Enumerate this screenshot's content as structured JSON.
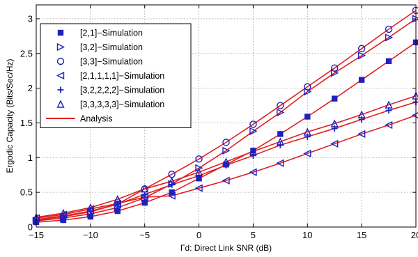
{
  "chart_data": {
    "type": "line",
    "xlabel": "Γd: Direct Link SNR (dB)",
    "ylabel": "Ergodic Capacity (Bits/Sec/Hz)",
    "xlim": [
      -15,
      20
    ],
    "ylim": [
      0,
      3.2
    ],
    "xticks": [
      -15,
      -10,
      -5,
      0,
      5,
      10,
      15,
      20
    ],
    "xtick_labels": [
      "−15",
      "−10",
      "−5",
      "0",
      "5",
      "10",
      "15",
      "20"
    ],
    "yticks": [
      0,
      0.5,
      1,
      1.5,
      2,
      2.5,
      3
    ],
    "ytick_labels": [
      "0",
      "0.5",
      "1",
      "1.5",
      "2",
      "2.5",
      "3"
    ],
    "grid": true,
    "legend_position": "top-left",
    "line_color": "#e02020",
    "marker_color": "#2020c0",
    "x": [
      -15,
      -12.5,
      -10,
      -7.5,
      -5,
      -2.5,
      0,
      2.5,
      5,
      7.5,
      10,
      12.5,
      15,
      17.5,
      20
    ],
    "series": [
      {
        "name": "[2,1]−Simulation",
        "marker": "square",
        "values": [
          0.07,
          0.1,
          0.15,
          0.23,
          0.35,
          0.5,
          0.7,
          0.9,
          1.1,
          1.34,
          1.59,
          1.85,
          2.12,
          2.39,
          2.66
        ]
      },
      {
        "name": "[3,2]−Simulation",
        "marker": "triangle-right",
        "values": [
          0.09,
          0.13,
          0.19,
          0.28,
          0.42,
          0.62,
          0.85,
          1.1,
          1.38,
          1.65,
          1.95,
          2.22,
          2.47,
          2.73,
          3.0
        ]
      },
      {
        "name": "[3,3]−Simulation",
        "marker": "circle",
        "values": [
          0.1,
          0.15,
          0.22,
          0.33,
          0.55,
          0.76,
          0.98,
          1.22,
          1.48,
          1.75,
          2.02,
          2.29,
          2.57,
          2.85,
          3.12
        ]
      },
      {
        "name": "[2,1,1,1,1]−Simulation",
        "marker": "triangle-left",
        "values": [
          0.13,
          0.18,
          0.26,
          0.34,
          0.43,
          0.45,
          0.56,
          0.67,
          0.79,
          0.92,
          1.06,
          1.2,
          1.34,
          1.47,
          1.61
        ]
      },
      {
        "name": "[3,2,2,2,2]−Simulation",
        "marker": "plus",
        "values": [
          0.11,
          0.16,
          0.23,
          0.33,
          0.47,
          0.61,
          0.74,
          0.89,
          1.03,
          1.18,
          1.3,
          1.42,
          1.55,
          1.68,
          1.8
        ]
      },
      {
        "name": "[3,3,3,3,3]−Simulation",
        "marker": "triangle-up",
        "values": [
          0.14,
          0.2,
          0.28,
          0.4,
          0.55,
          0.66,
          0.79,
          0.94,
          1.09,
          1.23,
          1.37,
          1.49,
          1.62,
          1.76,
          1.89
        ]
      }
    ],
    "analysis_label": "Analysis"
  }
}
